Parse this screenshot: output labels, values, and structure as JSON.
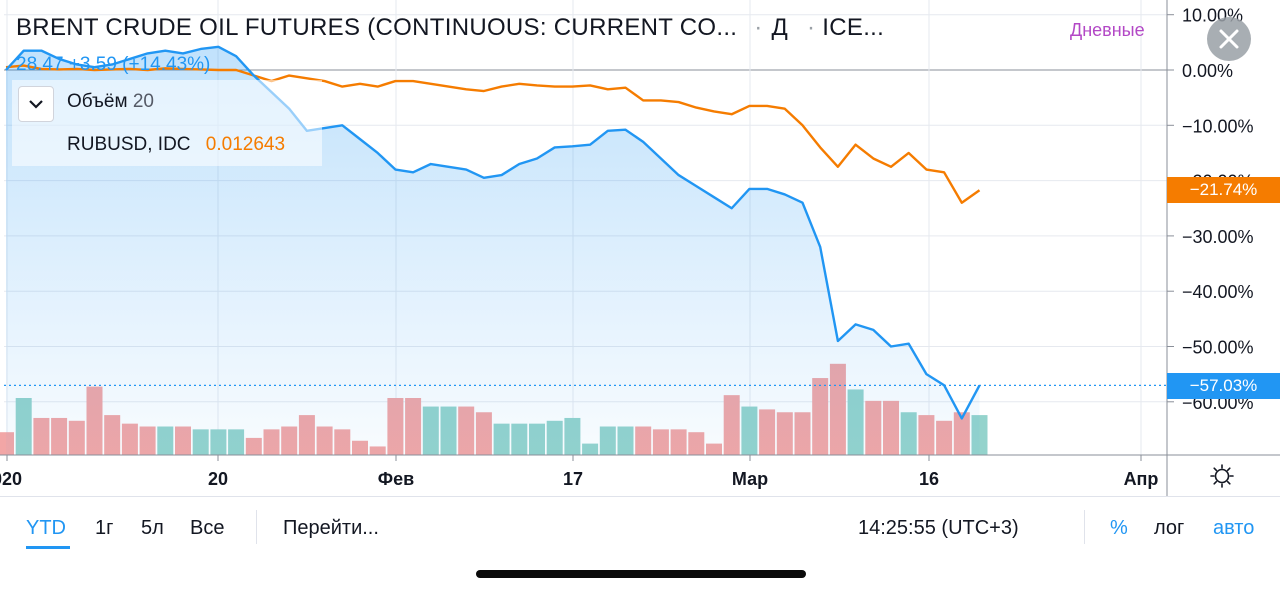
{
  "header": {
    "title": "BRENT CRUDE OIL FUTURES (CONTINUOUS: CURRENT CO...",
    "interval_dot": "·",
    "interval_code": "Д",
    "exchange": "ICE...",
    "interval_label": "Дневные"
  },
  "legend": {
    "price_text": "28.47 +3.59 (+14.43%)",
    "volume_label": "Объём",
    "volume_length": "20",
    "overlay_symbol": "RUBUSD, IDC",
    "overlay_value": "0.012643"
  },
  "badges": {
    "rubusd_pct": "−21.74%",
    "brent_pct": "−57.03%"
  },
  "icons": {
    "close": "close-icon",
    "toggle": "chevron-down-icon",
    "settings": "gear-icon"
  },
  "colors": {
    "brent": "#2196f3",
    "rubusd": "#f57c00",
    "vol_up": "#94d3cc",
    "vol_down": "#f2a6a6",
    "interval": "#b348c6"
  },
  "bottom": {
    "ranges": [
      "YTD",
      "1г",
      "5л",
      "Все"
    ],
    "active_range": "YTD",
    "goto": "Перейти...",
    "time": "14:25:55 (UTC+3)",
    "percent": "%",
    "log": "лог",
    "auto": "авто"
  },
  "chart_data": {
    "type": "line",
    "y_unit": "%",
    "y_ticks": [
      "10.00%",
      "0.00%",
      "−10.00%",
      "−20.00%",
      "−30.00%",
      "−40.00%",
      "−50.00%",
      "−60.00%"
    ],
    "y_tick_values": [
      10,
      0,
      -10,
      -20,
      -30,
      -40,
      -50,
      -60
    ],
    "ylim": [
      -70,
      11
    ],
    "x_tick_labels": [
      "020",
      "20",
      "Фев",
      "17",
      "Мар",
      "16",
      "Апр"
    ],
    "grid": true,
    "series": [
      {
        "name": "BRENT CRUDE OIL FUTURES",
        "values": [
          0,
          3.5,
          3.5,
          2,
          1,
          0.5,
          1,
          2,
          3,
          3.5,
          3,
          3.8,
          4.2,
          2.5,
          -1,
          -4,
          -7,
          -11,
          -10.5,
          -10,
          -12.5,
          -15,
          -18,
          -18.5,
          -17,
          -17.5,
          -18,
          -19.5,
          -19,
          -17,
          -16,
          -14,
          -13.8,
          -13.5,
          -11,
          -10.8,
          -13,
          -16,
          -19,
          -21,
          -23,
          -25,
          -21.5,
          -21.5,
          -22.5,
          -24,
          -32,
          -49,
          -46,
          -47,
          -50,
          -49.5,
          -55,
          -57,
          -63,
          -57.03
        ]
      },
      {
        "name": "RUBUSD, IDC",
        "values": [
          0.5,
          0.8,
          0.2,
          0.1,
          0.2,
          0,
          0.1,
          0.2,
          0,
          0.3,
          0.2,
          0.1,
          0,
          0,
          -1,
          -2,
          -1,
          -1.5,
          -2,
          -3,
          -2.5,
          -3,
          -2,
          -2,
          -2.5,
          -3,
          -3.5,
          -3.8,
          -3,
          -2.5,
          -2.8,
          -3,
          -3,
          -2.8,
          -3.5,
          -3.2,
          -5.5,
          -5.5,
          -5.8,
          -6.8,
          -7.5,
          -8,
          -6.5,
          -6.5,
          -7,
          -10,
          -14,
          -17.5,
          -13.5,
          -16,
          -17.5,
          -15,
          -18,
          -18.5,
          -24,
          -21.74
        ]
      }
    ],
    "volume": {
      "length": 20,
      "values": [
        8,
        20,
        13,
        13,
        12,
        24,
        14,
        11,
        10,
        10,
        10,
        9,
        9,
        9,
        6,
        9,
        10,
        14,
        10,
        9,
        5,
        3,
        20,
        20,
        17,
        17,
        17,
        15,
        11,
        11,
        11,
        12,
        13,
        4,
        10,
        10,
        10,
        9,
        9,
        8,
        4,
        21,
        17,
        16,
        15,
        15,
        27,
        32,
        23,
        19,
        19,
        15,
        14,
        12,
        15,
        14
      ],
      "up": [
        false,
        true,
        false,
        false,
        false,
        false,
        false,
        false,
        false,
        true,
        false,
        true,
        true,
        true,
        false,
        false,
        false,
        false,
        false,
        false,
        false,
        false,
        false,
        false,
        true,
        true,
        false,
        false,
        true,
        true,
        true,
        true,
        true,
        true,
        true,
        true,
        false,
        false,
        false,
        false,
        false,
        false,
        true,
        false,
        false,
        false,
        false,
        false,
        true,
        false,
        false,
        true,
        false,
        false,
        false,
        true
      ]
    }
  }
}
